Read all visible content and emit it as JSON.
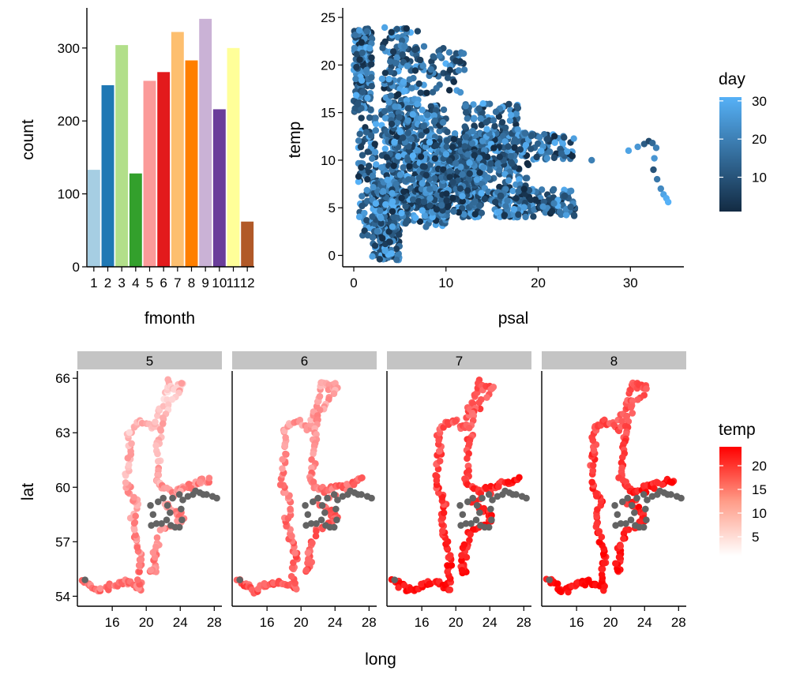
{
  "chart_data": [
    {
      "id": "bar",
      "type": "bar",
      "title": "",
      "xlabel": "fmonth",
      "ylabel": "count",
      "categories": [
        "1",
        "2",
        "3",
        "4",
        "5",
        "6",
        "7",
        "8",
        "9",
        "10",
        "11",
        "12"
      ],
      "values": [
        133,
        249,
        304,
        128,
        255,
        267,
        322,
        283,
        340,
        216,
        300,
        62
      ],
      "colors": [
        "#a6cee3",
        "#1f78b4",
        "#b2df8a",
        "#33a02c",
        "#fb9a99",
        "#e31a1c",
        "#fdbf6f",
        "#ff7f00",
        "#cab2d6",
        "#6a3d9a",
        "#ffff99",
        "#b15928"
      ],
      "ylim": [
        0,
        355
      ],
      "yticks": [
        0,
        100,
        200,
        300
      ],
      "grid": false,
      "legend": "none"
    },
    {
      "id": "scatter",
      "type": "scatter",
      "title": "",
      "xlabel": "psal",
      "ylabel": "temp",
      "xlim": [
        -1.2,
        35.8
      ],
      "ylim": [
        -1.2,
        26.0
      ],
      "xticks": [
        0,
        10,
        20,
        30
      ],
      "yticks": [
        0,
        5,
        10,
        15,
        20,
        25
      ],
      "color_by": "day",
      "legend": {
        "title": "day",
        "position": "right",
        "ticks": [
          10,
          20,
          30
        ],
        "range": [
          1,
          31
        ],
        "low_color": "#132b43",
        "high_color": "#56b1f7"
      },
      "clusters": [
        {
          "x": [
            0,
            2
          ],
          "y": [
            15,
            24
          ],
          "n": 170
        },
        {
          "x": [
            0.5,
            2.5
          ],
          "y": [
            2,
            15
          ],
          "n": 90
        },
        {
          "x": [
            2,
            5
          ],
          "y": [
            -0.5,
            8
          ],
          "n": 280
        },
        {
          "x": [
            3,
            7
          ],
          "y": [
            5,
            24
          ],
          "n": 320
        },
        {
          "x": [
            4,
            10
          ],
          "y": [
            3,
            16
          ],
          "n": 350
        },
        {
          "x": [
            7,
            14
          ],
          "y": [
            4,
            12
          ],
          "n": 320
        },
        {
          "x": [
            10,
            19
          ],
          "y": [
            5,
            13
          ],
          "n": 300
        },
        {
          "x": [
            12,
            18
          ],
          "y": [
            9,
            16
          ],
          "n": 160
        },
        {
          "x": [
            15,
            24
          ],
          "y": [
            4,
            7
          ],
          "n": 150
        },
        {
          "x": [
            18,
            24
          ],
          "y": [
            10,
            13
          ],
          "n": 80
        },
        {
          "x": [
            7,
            12
          ],
          "y": [
            17,
            22
          ],
          "n": 60
        }
      ],
      "extra_points": [
        {
          "x": 25.8,
          "y": 10.0,
          "day": 20
        },
        {
          "x": 29.8,
          "y": 11.0,
          "day": 28
        },
        {
          "x": 30.8,
          "y": 11.4,
          "day": 25
        },
        {
          "x": 31.5,
          "y": 11.7,
          "day": 12
        },
        {
          "x": 32.0,
          "y": 12.0,
          "day": 8
        },
        {
          "x": 32.4,
          "y": 11.8,
          "day": 15
        },
        {
          "x": 32.8,
          "y": 11.3,
          "day": 20
        },
        {
          "x": 32.6,
          "y": 10.2,
          "day": 25
        },
        {
          "x": 32.5,
          "y": 9.0,
          "day": 10
        },
        {
          "x": 32.9,
          "y": 8.0,
          "day": 18
        },
        {
          "x": 33.3,
          "y": 7.0,
          "day": 22
        },
        {
          "x": 33.6,
          "y": 6.4,
          "day": 28
        },
        {
          "x": 33.9,
          "y": 6.0,
          "day": 30
        },
        {
          "x": 34.1,
          "y": 5.6,
          "day": 31
        }
      ]
    },
    {
      "id": "map",
      "type": "scatter",
      "title": "",
      "xlabel": "long",
      "ylabel": "lat",
      "facets": [
        "5",
        "6",
        "7",
        "8"
      ],
      "xlim": [
        11.9,
        28.9
      ],
      "ylim": [
        53.45,
        66.4
      ],
      "xticks": [
        16,
        20,
        24,
        28
      ],
      "yticks": [
        54,
        57,
        60,
        63,
        66
      ],
      "color_by": "temp",
      "na_color": "#636363",
      "facet_temp_offset": [
        0,
        3,
        9,
        10
      ],
      "legend": {
        "title": "temp",
        "position": "right",
        "ticks": [
          5,
          10,
          15,
          20
        ],
        "range": [
          1,
          24
        ],
        "low_color": "#ffffff",
        "high_color": "#ff0000"
      },
      "route": [
        [
          12.7,
          54.9
        ],
        [
          13.5,
          54.6
        ],
        [
          14.4,
          54.3
        ],
        [
          15.5,
          54.5
        ],
        [
          16.5,
          54.7
        ],
        [
          17.6,
          54.8
        ],
        [
          18.6,
          54.6
        ],
        [
          19.3,
          54.4
        ],
        [
          19.0,
          55.4
        ],
        [
          19.5,
          56.1
        ],
        [
          18.9,
          56.8
        ],
        [
          18.6,
          57.5
        ],
        [
          18.3,
          58.2
        ],
        [
          18.9,
          59.1
        ],
        [
          18.2,
          59.6
        ],
        [
          17.6,
          60.4
        ],
        [
          17.9,
          61.3
        ],
        [
          18.2,
          62.1
        ],
        [
          17.9,
          62.9
        ],
        [
          18.7,
          63.5
        ],
        [
          20.0,
          63.6
        ],
        [
          20.9,
          63.2
        ],
        [
          21.4,
          64.1
        ],
        [
          22.3,
          64.9
        ],
        [
          22.6,
          65.8
        ],
        [
          23.4,
          65.5
        ],
        [
          24.3,
          65.6
        ],
        [
          22.8,
          64.6
        ],
        [
          22.0,
          63.8
        ],
        [
          21.7,
          62.8
        ],
        [
          21.4,
          62.2
        ],
        [
          21.5,
          61.1
        ],
        [
          21.2,
          60.4
        ],
        [
          21.9,
          60.0
        ],
        [
          22.9,
          59.8
        ],
        [
          24.1,
          60.0
        ],
        [
          25.1,
          60.1
        ],
        [
          26.3,
          60.3
        ],
        [
          27.4,
          60.4
        ],
        [
          22.0,
          59.2
        ],
        [
          23.5,
          58.7
        ],
        [
          24.2,
          58.3
        ],
        [
          23.5,
          58.0
        ],
        [
          21.6,
          57.5
        ],
        [
          21.1,
          56.4
        ],
        [
          21.0,
          55.4
        ],
        [
          20.6,
          55.5
        ],
        [
          21.2,
          57.2
        ]
      ],
      "na_loop": [
        [
          20.5,
          59.0
        ],
        [
          21.4,
          59.2
        ],
        [
          22.0,
          59.4
        ],
        [
          22.5,
          59.0
        ],
        [
          22.8,
          58.6
        ],
        [
          22.4,
          58.2
        ],
        [
          22.9,
          57.9
        ],
        [
          23.4,
          57.8
        ],
        [
          23.9,
          57.8
        ],
        [
          24.2,
          58.2
        ],
        [
          24.1,
          58.8
        ],
        [
          24.3,
          59.3
        ],
        [
          24.9,
          59.5
        ],
        [
          25.5,
          59.6
        ],
        [
          26.3,
          59.7
        ],
        [
          27.1,
          59.6
        ],
        [
          27.8,
          59.5
        ],
        [
          28.3,
          59.4
        ],
        [
          26.7,
          59.6
        ],
        [
          25.8,
          59.8
        ],
        [
          23.9,
          59.6
        ],
        [
          23.1,
          59.4
        ],
        [
          21.8,
          58.0
        ],
        [
          21.2,
          58.0
        ],
        [
          20.6,
          57.9
        ],
        [
          20.8,
          58.5
        ],
        [
          12.8,
          54.9
        ]
      ]
    }
  ]
}
